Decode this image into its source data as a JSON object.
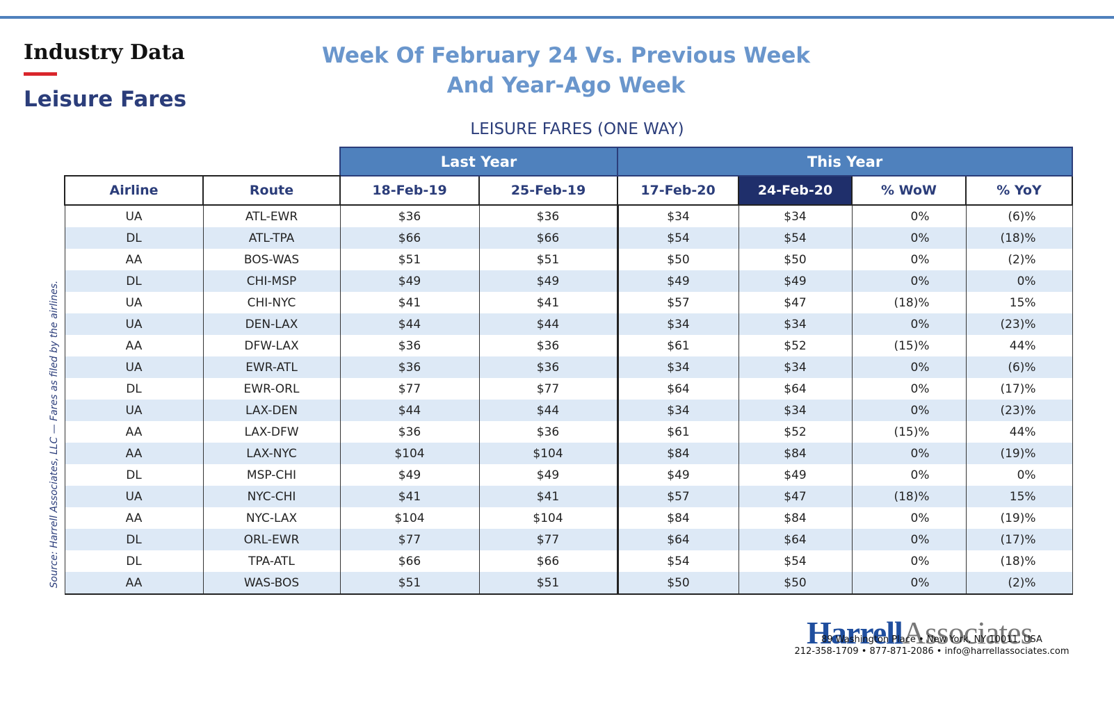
{
  "header": {
    "section": "Industry Data",
    "subtitle": "Leisure Fares",
    "title_lines": [
      "Week Of February 24 Vs. Previous Week",
      "And Year-Ago Week"
    ]
  },
  "table": {
    "title": "LEISURE FARES (ONE WAY)",
    "groups": [
      "Last Year",
      "This Year"
    ],
    "columns": [
      "Airline",
      "Route",
      "18-Feb-19",
      "25-Feb-19",
      "17-Feb-20",
      "24-Feb-20",
      "% WoW",
      "% YoY"
    ],
    "rows": [
      [
        "UA",
        "ATL-EWR",
        "$36",
        "$36",
        "$34",
        "$34",
        "0%",
        "(6)%"
      ],
      [
        "DL",
        "ATL-TPA",
        "$66",
        "$66",
        "$54",
        "$54",
        "0%",
        "(18)%"
      ],
      [
        "AA",
        "BOS-WAS",
        "$51",
        "$51",
        "$50",
        "$50",
        "0%",
        "(2)%"
      ],
      [
        "DL",
        "CHI-MSP",
        "$49",
        "$49",
        "$49",
        "$49",
        "0%",
        "0%"
      ],
      [
        "UA",
        "CHI-NYC",
        "$41",
        "$41",
        "$57",
        "$47",
        "(18)%",
        "15%"
      ],
      [
        "UA",
        "DEN-LAX",
        "$44",
        "$44",
        "$34",
        "$34",
        "0%",
        "(23)%"
      ],
      [
        "AA",
        "DFW-LAX",
        "$36",
        "$36",
        "$61",
        "$52",
        "(15)%",
        "44%"
      ],
      [
        "UA",
        "EWR-ATL",
        "$36",
        "$36",
        "$34",
        "$34",
        "0%",
        "(6)%"
      ],
      [
        "DL",
        "EWR-ORL",
        "$77",
        "$77",
        "$64",
        "$64",
        "0%",
        "(17)%"
      ],
      [
        "UA",
        "LAX-DEN",
        "$44",
        "$44",
        "$34",
        "$34",
        "0%",
        "(23)%"
      ],
      [
        "AA",
        "LAX-DFW",
        "$36",
        "$36",
        "$61",
        "$52",
        "(15)%",
        "44%"
      ],
      [
        "AA",
        "LAX-NYC",
        "$104",
        "$104",
        "$84",
        "$84",
        "0%",
        "(19)%"
      ],
      [
        "DL",
        "MSP-CHI",
        "$49",
        "$49",
        "$49",
        "$49",
        "0%",
        "0%"
      ],
      [
        "UA",
        "NYC-CHI",
        "$41",
        "$41",
        "$57",
        "$47",
        "(18)%",
        "15%"
      ],
      [
        "AA",
        "NYC-LAX",
        "$104",
        "$104",
        "$84",
        "$84",
        "0%",
        "(19)%"
      ],
      [
        "DL",
        "ORL-EWR",
        "$77",
        "$77",
        "$64",
        "$64",
        "0%",
        "(17)%"
      ],
      [
        "DL",
        "TPA-ATL",
        "$66",
        "$66",
        "$54",
        "$54",
        "0%",
        "(18)%"
      ],
      [
        "AA",
        "WAS-BOS",
        "$51",
        "$51",
        "$50",
        "$50",
        "0%",
        "(2)%"
      ]
    ]
  },
  "source": "Source: Harrell Associates, LLC — Fares as filed by the airlines.",
  "footer": {
    "logo_bold": "Harrell",
    "logo_light": "Associates",
    "address": "89 Washington Place • New York, NY 10011, USA",
    "contact": "212-358-1709 • 877-871-2086 • info@harrellassociates.com"
  }
}
